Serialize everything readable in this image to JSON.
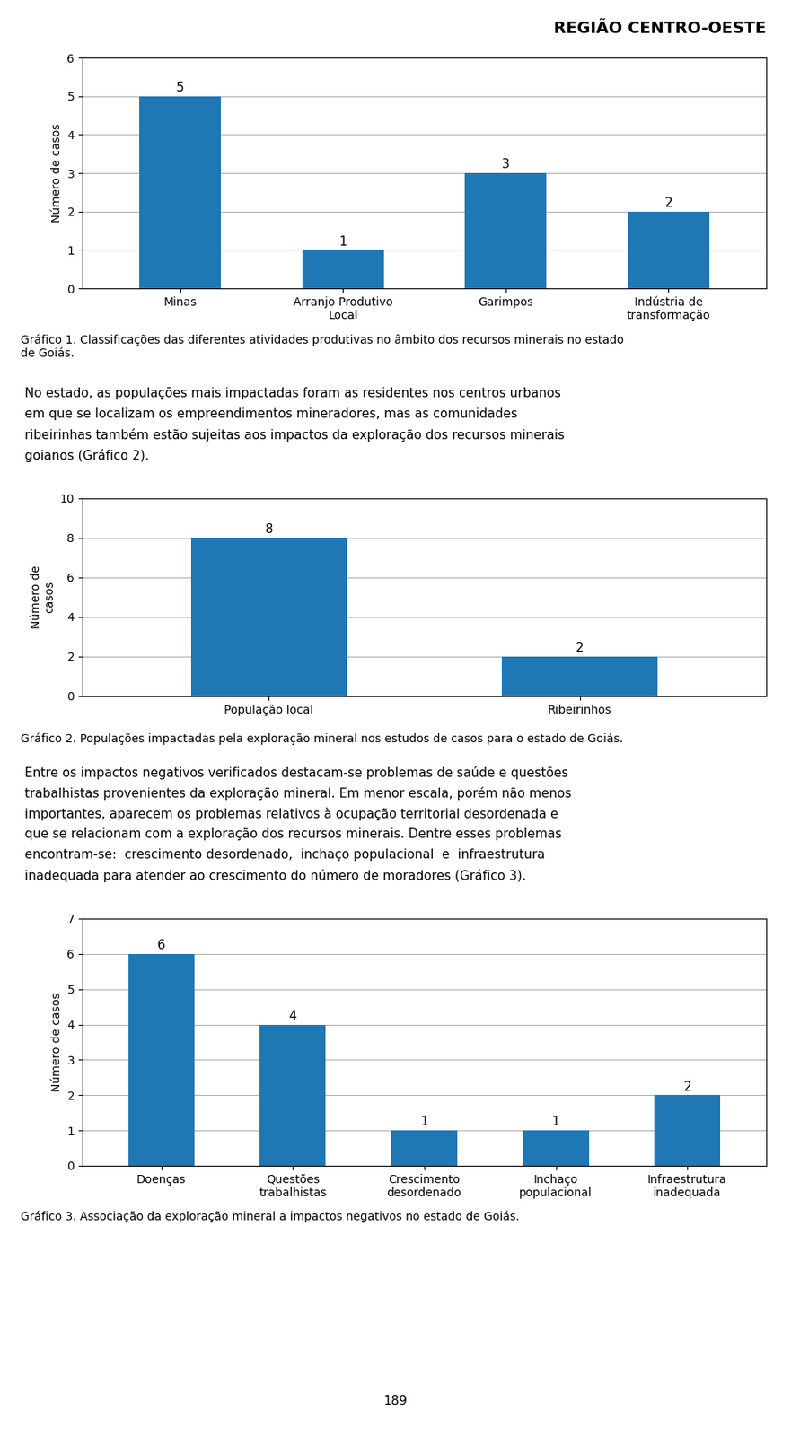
{
  "header": "REGIÃO CENTRO-OESTE",
  "page_number": "189",
  "chart_data": [
    {
      "type": "bar",
      "categories": [
        "Minas",
        "Arranjo Produtivo\nLocal",
        "Garimpos",
        "Indústria de\ntransformação"
      ],
      "values": [
        5,
        1,
        3,
        2
      ],
      "ylim": [
        0,
        6
      ],
      "yticks": [
        0,
        1,
        2,
        3,
        4,
        5,
        6
      ],
      "ylabel": "Número de casos",
      "grid": true,
      "data_labels": true,
      "caption": "Gráfico 1. Classificações das diferentes atividades produtivas no âmbito dos recursos minerais no estado\nde Goiás."
    },
    {
      "type": "bar",
      "categories": [
        "População local",
        "Ribeirinhos"
      ],
      "values": [
        8,
        2
      ],
      "ylim": [
        0,
        10
      ],
      "yticks": [
        0,
        2,
        4,
        6,
        8,
        10
      ],
      "ylabel": "Número de\ncasos",
      "grid": true,
      "data_labels": true,
      "caption": "Gráfico 2. Populações impactadas pela exploração mineral nos estudos de casos para o estado de Goiás."
    },
    {
      "type": "bar",
      "categories": [
        "Doenças",
        "Questões\ntrabalhistas",
        "Crescimento\ndesordenado",
        "Inchaço\npopulacional",
        "Infraestrutura\ninadequada"
      ],
      "values": [
        6,
        4,
        1,
        1,
        2
      ],
      "ylim": [
        0,
        7
      ],
      "yticks": [
        0,
        1,
        2,
        3,
        4,
        5,
        6,
        7
      ],
      "ylabel": "Número de casos",
      "grid": true,
      "data_labels": true,
      "caption": "Gráfico 3. Associação da exploração mineral a impactos negativos no estado de Goiás."
    }
  ],
  "paragraphs": [
    [
      "No estado, as populações mais impactadas foram as residentes nos centros urbanos",
      "em que se localizam os empreendimentos mineradores, mas as comunidades",
      "ribeirinhas também estão sujeitas aos impactos da exploração dos recursos minerais",
      "goianos (Gráfico 2)."
    ],
    [
      "Entre os impactos negativos verificados destacam-se problemas de saúde e questões",
      "trabalhistas provenientes da exploração mineral. Em menor escala, porém não menos",
      "importantes, aparecem os problemas relativos à ocupação territorial desordenada e",
      "que se relacionam com a exploração dos recursos minerais. Dentre esses problemas",
      "encontram-se:  crescimento desordenado,  inchaço populacional  e  infraestrutura",
      "inadequada para atender ao crescimento do número de moradores (Gráfico 3)."
    ]
  ]
}
